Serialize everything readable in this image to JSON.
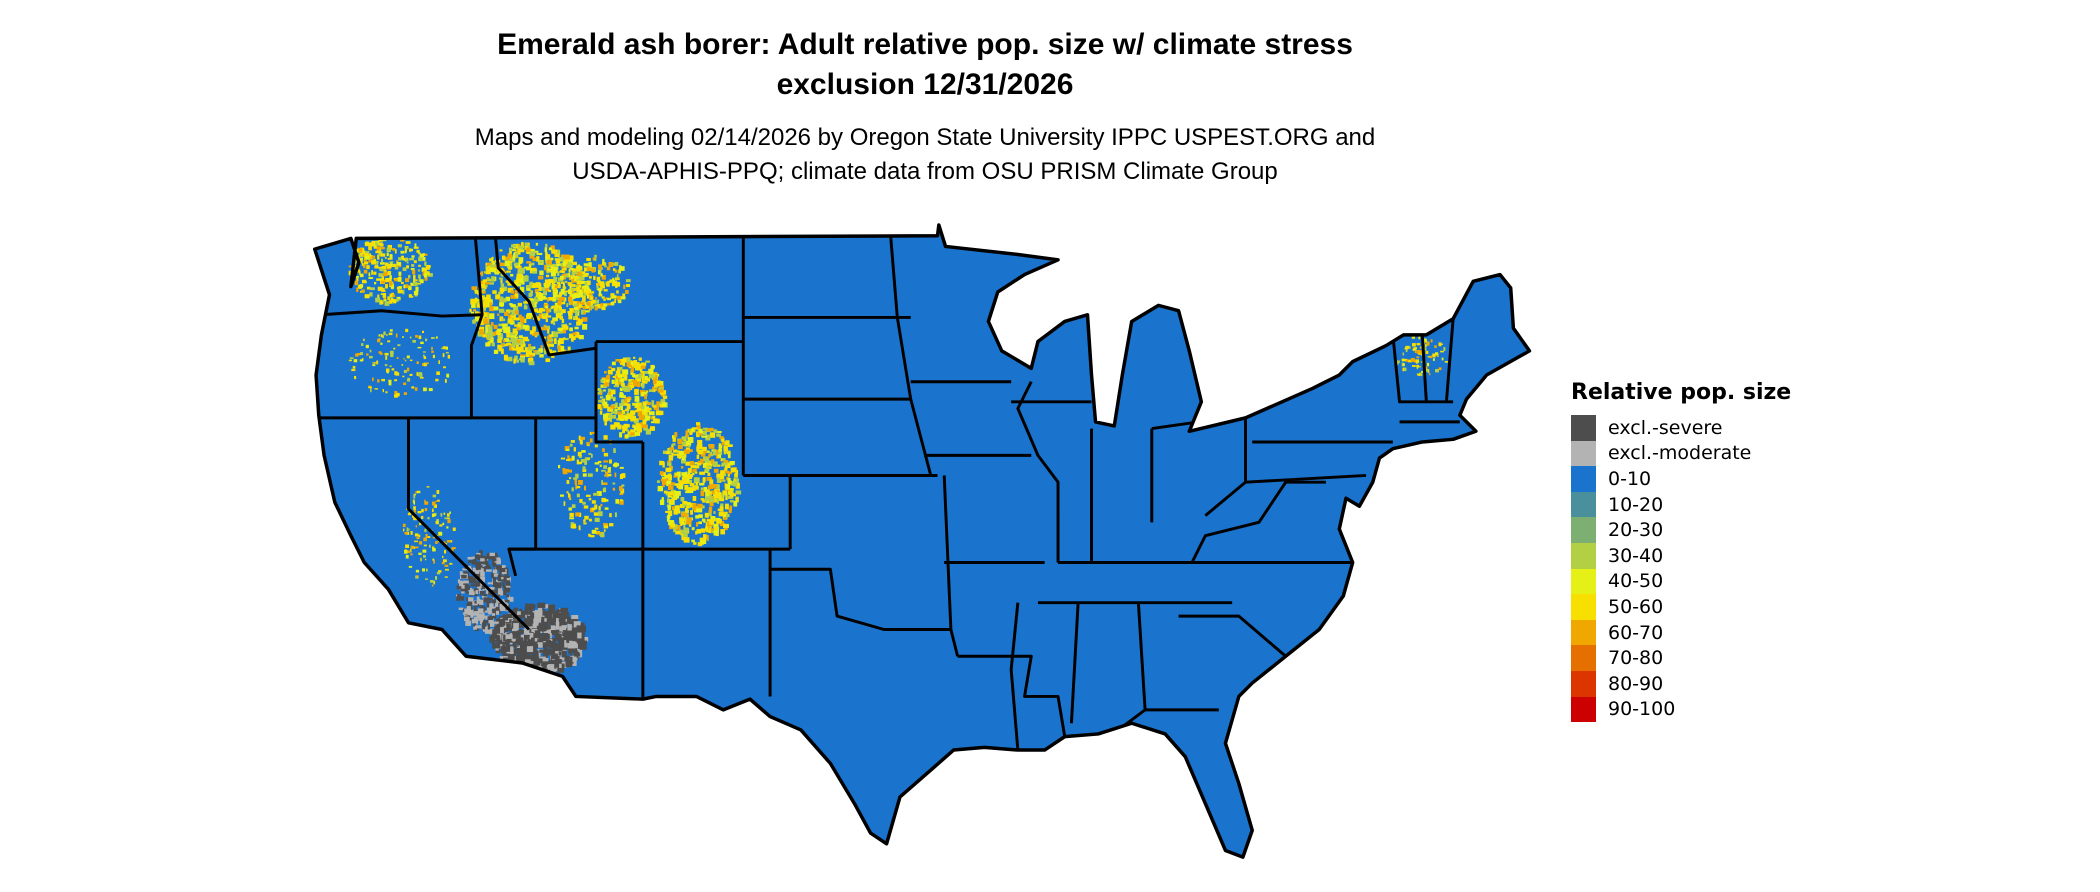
{
  "title": {
    "line1": "Emerald ash borer: Adult relative pop. size w/ climate stress",
    "line2": "exclusion 12/31/2026"
  },
  "subtitle": {
    "line1": "Maps and modeling 02/14/2026 by Oregon State University IPPC USPEST.ORG and",
    "line2": "USDA-APHIS-PPQ; climate data from OSU PRISM Climate Group"
  },
  "map": {
    "region": "Contiguous United States",
    "dominant_class": "0-10",
    "fill_color": "#1a73cc",
    "border_color": "#000000"
  },
  "legend": {
    "title": "Relative pop. size",
    "items": [
      {
        "label": "excl.-severe",
        "color": "#4d4d4d"
      },
      {
        "label": "excl.-moderate",
        "color": "#b3b3b3"
      },
      {
        "label": "0-10",
        "color": "#1a73cc"
      },
      {
        "label": "10-20",
        "color": "#4a8f9c"
      },
      {
        "label": "20-30",
        "color": "#7dae72"
      },
      {
        "label": "30-40",
        "color": "#b3d045"
      },
      {
        "label": "40-50",
        "color": "#e4f016"
      },
      {
        "label": "50-60",
        "color": "#f7e000"
      },
      {
        "label": "60-70",
        "color": "#f0a800"
      },
      {
        "label": "70-80",
        "color": "#e57000"
      },
      {
        "label": "80-90",
        "color": "#dc3500"
      },
      {
        "label": "90-100",
        "color": "#cc0000"
      }
    ]
  }
}
